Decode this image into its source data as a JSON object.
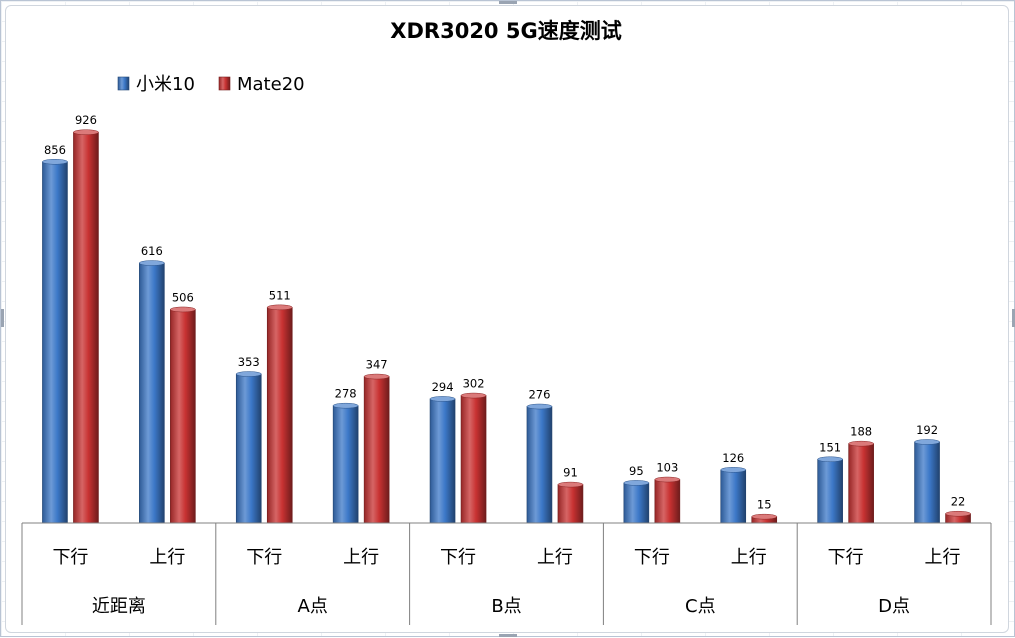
{
  "chart_data": {
    "type": "bar",
    "title": "XDR3020 5G速度测试",
    "groups": [
      "近距离",
      "A点",
      "B点",
      "C点",
      "D点"
    ],
    "subcategories": [
      "下行",
      "上行"
    ],
    "categories": [
      "近距离 下行",
      "近距离 上行",
      "A点 下行",
      "A点 上行",
      "B点 下行",
      "B点 上行",
      "C点 下行",
      "C点 上行",
      "D点 下行",
      "D点 上行"
    ],
    "series": [
      {
        "name": "小米10",
        "color": "#3c78c8",
        "values": [
          856,
          616,
          353,
          278,
          294,
          276,
          95,
          126,
          151,
          192
        ]
      },
      {
        "name": "Mate20",
        "color": "#c83232",
        "values": [
          926,
          506,
          511,
          347,
          302,
          91,
          103,
          15,
          188,
          22
        ]
      }
    ],
    "xlabel": "",
    "ylabel": "",
    "ylim": [
      0,
      1000
    ],
    "legend_position": "top-left",
    "grid": false,
    "style": "3d-cylinder"
  }
}
